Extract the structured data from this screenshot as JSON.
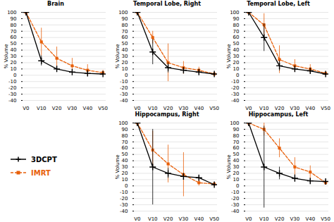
{
  "chart_data": [
    {
      "type": "line",
      "title": "Brain",
      "ylabel": "% Volume",
      "grid": true,
      "x": [
        0,
        10,
        20,
        30,
        40,
        50
      ],
      "xlim": [
        -2,
        52
      ],
      "xticks": [
        {
          "value": 0,
          "label": "V0"
        },
        {
          "value": 10,
          "label": "V10"
        },
        {
          "value": 20,
          "label": "V20"
        },
        {
          "value": 30,
          "label": "V30"
        },
        {
          "value": 40,
          "label": "V40"
        },
        {
          "value": 50,
          "label": "V50"
        }
      ],
      "ylim": [
        -40,
        100
      ],
      "yticks": [
        -40,
        -30,
        -20,
        -10,
        0,
        10,
        20,
        30,
        40,
        50,
        60,
        70,
        80,
        90,
        100
      ],
      "series": [
        {
          "name": "3DCPT",
          "color": "#000000",
          "marker": "plus",
          "line_style": "solid",
          "values": [
            100,
            23,
            10,
            5,
            3,
            2
          ],
          "errors": [
            0,
            8,
            3,
            2,
            1,
            1
          ]
        },
        {
          "name": "IMRT",
          "color": "#E8600A",
          "marker": "square",
          "line_style": "dashed",
          "values": [
            100,
            53,
            27,
            15,
            8,
            4
          ],
          "errors": [
            0,
            22,
            18,
            12,
            9,
            4
          ]
        }
      ]
    },
    {
      "type": "line",
      "title": "Temporal Lobe, Right",
      "ylabel": "% Volume",
      "grid": true,
      "x": [
        0,
        10,
        20,
        30,
        40,
        50
      ],
      "xlim": [
        -2,
        52
      ],
      "xticks": [
        {
          "value": 0,
          "label": "V0"
        },
        {
          "value": 10,
          "label": "V10"
        },
        {
          "value": 20,
          "label": "V20"
        },
        {
          "value": 30,
          "label": "V30"
        },
        {
          "value": 40,
          "label": "V40"
        },
        {
          "value": 50,
          "label": "V50"
        }
      ],
      "ylim": [
        -40,
        100
      ],
      "yticks": [
        -40,
        -30,
        -20,
        -10,
        0,
        10,
        20,
        30,
        40,
        50,
        60,
        70,
        80,
        90,
        100
      ],
      "series": [
        {
          "name": "3DCPT",
          "color": "#000000",
          "marker": "plus",
          "line_style": "solid",
          "values": [
            100,
            37,
            12,
            8,
            5,
            2
          ],
          "errors": [
            0,
            20,
            8,
            4,
            3,
            2
          ]
        },
        {
          "name": "IMRT",
          "color": "#E8600A",
          "marker": "square",
          "line_style": "dashed",
          "values": [
            100,
            60,
            20,
            12,
            8,
            2
          ],
          "errors": [
            0,
            10,
            30,
            10,
            5,
            2
          ]
        }
      ]
    },
    {
      "type": "line",
      "title": "Temporal Lobe, Left",
      "ylabel": "% Volume",
      "grid": true,
      "x": [
        0,
        10,
        20,
        30,
        40,
        50
      ],
      "xlim": [
        -2,
        52
      ],
      "xticks": [
        {
          "value": 0,
          "label": "V0"
        },
        {
          "value": 10,
          "label": "V10"
        },
        {
          "value": 20,
          "label": "V20"
        },
        {
          "value": 30,
          "label": "V30"
        },
        {
          "value": 40,
          "label": "V40"
        },
        {
          "value": 50,
          "label": "V50"
        }
      ],
      "ylim": [
        -40,
        100
      ],
      "yticks": [
        -40,
        -30,
        -20,
        -10,
        0,
        10,
        20,
        30,
        40,
        50,
        60,
        70,
        80,
        90,
        100
      ],
      "series": [
        {
          "name": "3DCPT",
          "color": "#000000",
          "marker": "plus",
          "line_style": "solid",
          "values": [
            100,
            60,
            15,
            10,
            7,
            2
          ],
          "errors": [
            0,
            22,
            8,
            5,
            3,
            1
          ]
        },
        {
          "name": "IMRT",
          "color": "#E8600A",
          "marker": "square",
          "line_style": "dashed",
          "values": [
            100,
            80,
            25,
            15,
            10,
            3
          ],
          "errors": [
            0,
            18,
            22,
            10,
            7,
            2
          ]
        }
      ]
    },
    {
      "type": "line",
      "title": "Hippocampus, Right",
      "ylabel": "% Volume",
      "grid": true,
      "x": [
        0,
        10,
        20,
        30,
        40,
        50
      ],
      "xlim": [
        -2,
        52
      ],
      "xticks": [
        {
          "value": 0,
          "label": "V0"
        },
        {
          "value": 10,
          "label": "V10"
        },
        {
          "value": 20,
          "label": "V20"
        },
        {
          "value": 30,
          "label": "V30"
        },
        {
          "value": 40,
          "label": "V40"
        },
        {
          "value": 50,
          "label": "V50"
        }
      ],
      "ylim": [
        -40,
        100
      ],
      "yticks": [
        -40,
        -30,
        -20,
        -10,
        0,
        10,
        20,
        30,
        40,
        50,
        60,
        70,
        80,
        90,
        100
      ],
      "series": [
        {
          "name": "3DCPT",
          "color": "#000000",
          "marker": "plus",
          "line_style": "solid",
          "values": [
            100,
            30,
            20,
            15,
            13,
            2
          ],
          "errors": [
            0,
            60,
            8,
            5,
            3,
            1
          ]
        },
        {
          "name": "IMRT",
          "color": "#E8600A",
          "marker": "square",
          "line_style": "dashed",
          "values": [
            100,
            57,
            35,
            18,
            5,
            3
          ],
          "errors": [
            0,
            30,
            30,
            35,
            5,
            2
          ]
        }
      ]
    },
    {
      "type": "line",
      "title": "Hippocampus, Left",
      "ylabel": "% Volume",
      "grid": true,
      "x": [
        0,
        10,
        20,
        30,
        40,
        50
      ],
      "xlim": [
        -2,
        52
      ],
      "xticks": [
        {
          "value": 0,
          "label": "V0"
        },
        {
          "value": 10,
          "label": "V10"
        },
        {
          "value": 20,
          "label": "V20"
        },
        {
          "value": 30,
          "label": "V30"
        },
        {
          "value": 40,
          "label": "V40"
        },
        {
          "value": 50,
          "label": "V50"
        }
      ],
      "ylim": [
        -40,
        100
      ],
      "yticks": [
        -40,
        -30,
        -20,
        -10,
        0,
        10,
        20,
        30,
        40,
        50,
        60,
        70,
        80,
        90,
        100
      ],
      "series": [
        {
          "name": "3DCPT",
          "color": "#000000",
          "marker": "plus",
          "line_style": "solid",
          "values": [
            100,
            30,
            20,
            12,
            8,
            7
          ],
          "errors": [
            0,
            65,
            10,
            6,
            3,
            2
          ]
        },
        {
          "name": "IMRT",
          "color": "#E8600A",
          "marker": "square",
          "line_style": "dashed",
          "values": [
            100,
            90,
            60,
            30,
            22,
            5
          ],
          "errors": [
            0,
            10,
            15,
            15,
            10,
            3
          ]
        }
      ]
    }
  ]
}
